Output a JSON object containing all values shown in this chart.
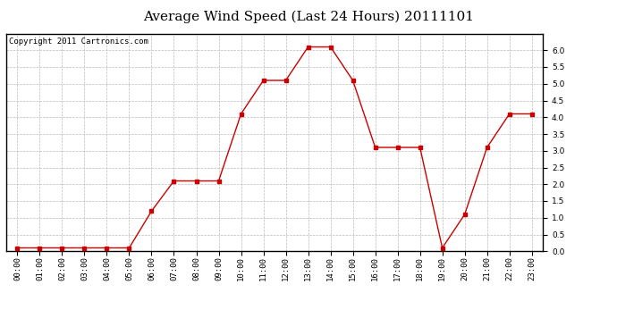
{
  "title": "Average Wind Speed (Last 24 Hours) 20111101",
  "copyright": "Copyright 2011 Cartronics.com",
  "hours": [
    "00:00",
    "01:00",
    "02:00",
    "03:00",
    "04:00",
    "05:00",
    "06:00",
    "07:00",
    "08:00",
    "09:00",
    "10:00",
    "11:00",
    "12:00",
    "13:00",
    "14:00",
    "15:00",
    "16:00",
    "17:00",
    "18:00",
    "19:00",
    "20:00",
    "21:00",
    "22:00",
    "23:00"
  ],
  "values": [
    0.1,
    0.1,
    0.1,
    0.1,
    0.1,
    0.1,
    1.2,
    2.1,
    2.1,
    2.1,
    4.1,
    5.1,
    5.1,
    6.1,
    6.1,
    5.1,
    3.1,
    3.1,
    3.1,
    0.1,
    1.1,
    3.1,
    4.1,
    4.1
  ],
  "line_color": "#cc0000",
  "marker": "s",
  "marker_size": 2.5,
  "bg_color": "#ffffff",
  "plot_bg_color": "#ffffff",
  "grid_color": "#bbbbbb",
  "ylim": [
    0.0,
    6.5
  ],
  "yticks": [
    0.0,
    0.5,
    1.0,
    1.5,
    2.0,
    2.5,
    3.0,
    3.5,
    4.0,
    4.5,
    5.0,
    5.5,
    6.0
  ],
  "title_fontsize": 11,
  "copyright_fontsize": 6.5,
  "tick_fontsize": 6.5,
  "border_color": "#000000"
}
